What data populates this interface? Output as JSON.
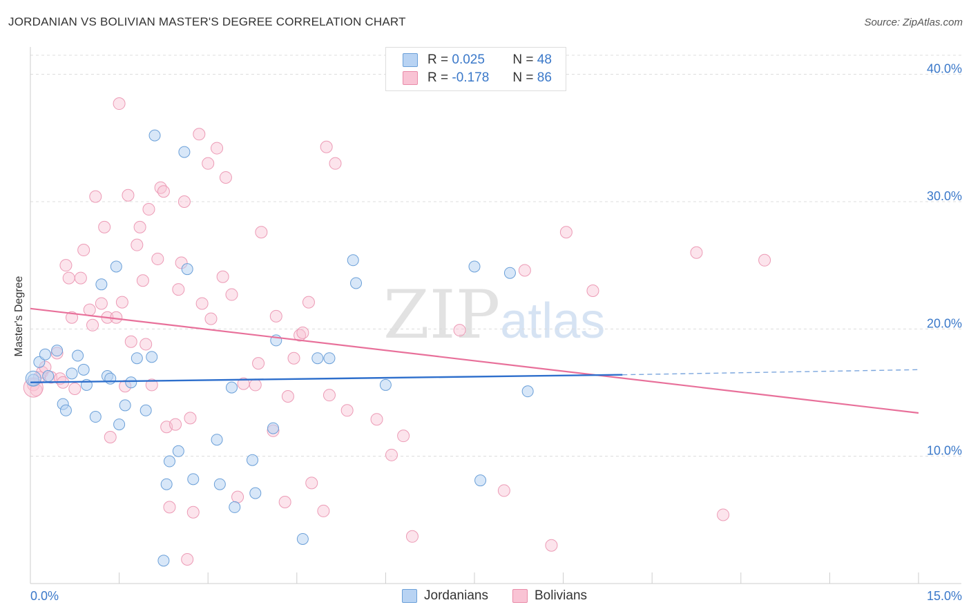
{
  "header": {
    "title": "JORDANIAN VS BOLIVIAN MASTER'S DEGREE CORRELATION CHART",
    "source": "Source: ZipAtlas.com"
  },
  "watermark": {
    "zip": "ZIP",
    "atlas": "atlas"
  },
  "legend_top": {
    "row1": {
      "r_label": "R =",
      "r_value": "0.025",
      "n_label": "N =",
      "n_value": "48"
    },
    "row2": {
      "r_label": "R =",
      "r_value": "-0.178",
      "n_label": "N =",
      "n_value": "86"
    }
  },
  "legend_bottom": {
    "series1": "Jordanians",
    "series2": "Bolivians"
  },
  "colors": {
    "blue": "#3a78c9",
    "pink": "#e8709a",
    "blue_fill": "#b8d3f3",
    "pink_fill": "#f9c3d4"
  },
  "chart_data": {
    "type": "scatter",
    "title": "JORDANIAN VS BOLIVIAN MASTER'S DEGREE CORRELATION CHART",
    "xlabel": "",
    "ylabel": "Master's Degree",
    "xlim": [
      0,
      15
    ],
    "ylim": [
      0,
      41.5
    ],
    "x_tick_labels": [
      "0.0%",
      "15.0%"
    ],
    "y_ticks": [
      10,
      20,
      30,
      40
    ],
    "y_tick_labels": [
      "10.0%",
      "20.0%",
      "30.0%",
      "40.0%"
    ],
    "grid": true,
    "legend_position": "bottom",
    "series": [
      {
        "name": "Jordanians",
        "color": "#3a78c9",
        "trend": {
          "x0": 0,
          "y0": 15.8,
          "x1": 10.0,
          "y1": 16.4,
          "dashed_to_x": 15,
          "dashed_y": 16.8
        },
        "points": [
          [
            0.15,
            17.4
          ],
          [
            0.25,
            18.0
          ],
          [
            0.3,
            16.3
          ],
          [
            0.45,
            18.3
          ],
          [
            0.55,
            14.1
          ],
          [
            0.6,
            13.6
          ],
          [
            0.7,
            16.5
          ],
          [
            0.8,
            17.9
          ],
          [
            0.9,
            16.8
          ],
          [
            0.95,
            15.6
          ],
          [
            1.1,
            13.1
          ],
          [
            1.2,
            23.5
          ],
          [
            1.3,
            16.3
          ],
          [
            1.35,
            16.1
          ],
          [
            1.45,
            24.9
          ],
          [
            1.5,
            12.5
          ],
          [
            1.6,
            14.0
          ],
          [
            1.7,
            15.8
          ],
          [
            1.8,
            17.7
          ],
          [
            1.95,
            13.6
          ],
          [
            2.05,
            17.8
          ],
          [
            2.1,
            35.2
          ],
          [
            2.25,
            1.8
          ],
          [
            2.3,
            7.8
          ],
          [
            2.35,
            9.6
          ],
          [
            2.5,
            10.4
          ],
          [
            2.6,
            33.9
          ],
          [
            2.65,
            24.7
          ],
          [
            2.75,
            8.2
          ],
          [
            3.15,
            11.3
          ],
          [
            3.2,
            7.8
          ],
          [
            3.4,
            15.4
          ],
          [
            3.45,
            6.0
          ],
          [
            3.75,
            9.7
          ],
          [
            3.8,
            7.1
          ],
          [
            4.1,
            12.2
          ],
          [
            4.15,
            19.1
          ],
          [
            4.6,
            3.5
          ],
          [
            4.85,
            17.7
          ],
          [
            5.05,
            17.7
          ],
          [
            5.45,
            25.4
          ],
          [
            5.5,
            23.6
          ],
          [
            6.0,
            15.6
          ],
          [
            7.5,
            24.9
          ],
          [
            7.6,
            8.1
          ],
          [
            8.1,
            24.4
          ],
          [
            8.4,
            15.1
          ],
          [
            0.05,
            16.0
          ]
        ]
      },
      {
        "name": "Bolivians",
        "color": "#e8709a",
        "trend": {
          "x0": 0,
          "y0": 21.6,
          "x1": 15,
          "y1": 13.4
        },
        "points": [
          [
            0.05,
            15.6
          ],
          [
            0.15,
            16.2
          ],
          [
            0.2,
            16.6
          ],
          [
            0.35,
            16.2
          ],
          [
            0.45,
            18.1
          ],
          [
            0.5,
            16.1
          ],
          [
            0.6,
            25.0
          ],
          [
            0.65,
            24.0
          ],
          [
            0.7,
            20.9
          ],
          [
            0.75,
            15.3
          ],
          [
            0.85,
            24.0
          ],
          [
            0.9,
            26.2
          ],
          [
            1.0,
            21.5
          ],
          [
            1.05,
            20.3
          ],
          [
            1.1,
            30.4
          ],
          [
            1.2,
            22.0
          ],
          [
            1.25,
            28.0
          ],
          [
            1.3,
            20.9
          ],
          [
            1.35,
            11.5
          ],
          [
            1.45,
            20.9
          ],
          [
            1.5,
            37.7
          ],
          [
            1.55,
            22.1
          ],
          [
            1.6,
            15.5
          ],
          [
            1.65,
            30.5
          ],
          [
            1.7,
            19.0
          ],
          [
            1.8,
            26.6
          ],
          [
            1.85,
            28.0
          ],
          [
            1.9,
            23.8
          ],
          [
            1.95,
            18.8
          ],
          [
            2.0,
            29.4
          ],
          [
            2.05,
            15.6
          ],
          [
            2.15,
            25.5
          ],
          [
            2.2,
            31.1
          ],
          [
            2.25,
            30.8
          ],
          [
            2.3,
            12.3
          ],
          [
            2.35,
            6.0
          ],
          [
            2.45,
            12.5
          ],
          [
            2.5,
            23.1
          ],
          [
            2.55,
            25.2
          ],
          [
            2.6,
            30.0
          ],
          [
            2.65,
            1.9
          ],
          [
            2.7,
            13.0
          ],
          [
            2.75,
            5.6
          ],
          [
            2.85,
            35.3
          ],
          [
            2.9,
            22.0
          ],
          [
            3.0,
            33.0
          ],
          [
            3.05,
            20.8
          ],
          [
            3.15,
            34.2
          ],
          [
            3.25,
            24.1
          ],
          [
            3.3,
            31.9
          ],
          [
            3.4,
            22.7
          ],
          [
            3.5,
            6.8
          ],
          [
            3.6,
            15.7
          ],
          [
            3.8,
            15.6
          ],
          [
            3.85,
            17.3
          ],
          [
            3.9,
            27.6
          ],
          [
            4.1,
            12.0
          ],
          [
            4.15,
            21.0
          ],
          [
            4.3,
            6.4
          ],
          [
            4.35,
            14.7
          ],
          [
            4.45,
            17.7
          ],
          [
            4.55,
            19.5
          ],
          [
            4.6,
            19.7
          ],
          [
            4.7,
            22.1
          ],
          [
            4.75,
            7.9
          ],
          [
            4.95,
            5.7
          ],
          [
            5.0,
            34.3
          ],
          [
            5.05,
            14.8
          ],
          [
            5.15,
            33.0
          ],
          [
            5.35,
            13.6
          ],
          [
            5.85,
            12.9
          ],
          [
            6.1,
            10.1
          ],
          [
            6.3,
            11.6
          ],
          [
            6.45,
            3.7
          ],
          [
            7.25,
            19.9
          ],
          [
            8.0,
            7.3
          ],
          [
            8.35,
            24.6
          ],
          [
            8.8,
            3.0
          ],
          [
            9.05,
            27.6
          ],
          [
            9.5,
            23.0
          ],
          [
            11.25,
            26.0
          ],
          [
            11.7,
            5.4
          ],
          [
            12.4,
            25.4
          ],
          [
            0.1,
            15.2
          ],
          [
            0.25,
            17.0
          ],
          [
            0.55,
            15.8
          ]
        ]
      }
    ]
  }
}
